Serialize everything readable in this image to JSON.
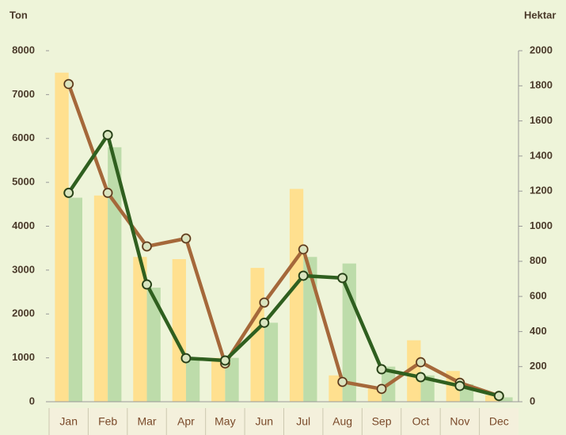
{
  "chart_data": {
    "type": "bar_line",
    "y_label": "Ton",
    "y2_label": "Hektar",
    "categories": [
      "Jan",
      "Feb",
      "Mar",
      "Apr",
      "May",
      "Jun",
      "Jul",
      "Aug",
      "Sep",
      "Oct",
      "Nov",
      "Dec"
    ],
    "series": [
      {
        "type": "bar",
        "color": "#ffe08f",
        "values": [
          7500,
          4700,
          3300,
          3250,
          1000,
          3050,
          4850,
          600,
          300,
          1400,
          700,
          150
        ]
      },
      {
        "type": "bar",
        "color": "#bddcaa",
        "values": [
          4650,
          5800,
          2600,
          1000,
          1000,
          1800,
          3300,
          3150,
          800,
          600,
          400,
          100
        ]
      },
      {
        "type": "line",
        "axis": "y2",
        "color": "#a5683a",
        "values": [
          1810,
          1190,
          885,
          930,
          218,
          565,
          868,
          113,
          73,
          225,
          108,
          33
        ]
      },
      {
        "type": "line",
        "axis": "y2",
        "color": "#2f5f1f",
        "values": [
          1190,
          1520,
          668,
          248,
          235,
          450,
          718,
          705,
          185,
          140,
          90,
          33
        ]
      }
    ],
    "ylim": [
      0,
      8000
    ],
    "yticks": [
      0,
      1000,
      2000,
      3000,
      4000,
      5000,
      6000,
      7000,
      8000
    ],
    "y2lim": [
      0,
      2000
    ],
    "y2ticks": [
      0,
      200,
      400,
      600,
      800,
      1000,
      1200,
      1400,
      1600,
      1800,
      2000
    ],
    "grid": false
  }
}
